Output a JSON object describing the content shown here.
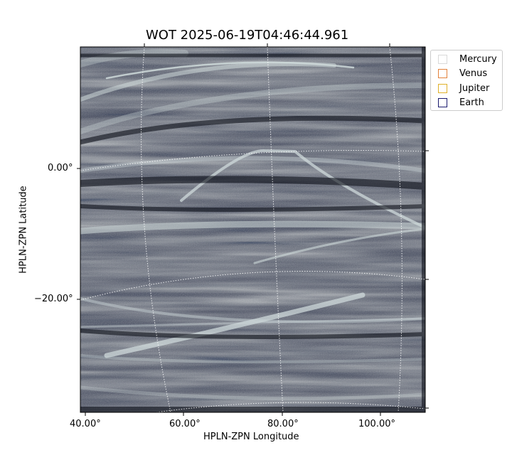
{
  "title": "WOT 2025-06-19T04:46:44.961",
  "axes": {
    "xlabel": "HPLN-ZPN Longitude",
    "ylabel": "HPLN-ZPN Latitude",
    "xticks": [
      "40.00°",
      "60.00°",
      "80.00°",
      "100.00°"
    ],
    "yticks": [
      "0.00°",
      "−20.00°"
    ]
  },
  "legend": {
    "items": [
      {
        "label": "Mercury",
        "color": "#d9d9d9"
      },
      {
        "label": "Venus",
        "color": "#e3813b"
      },
      {
        "label": "Jupiter",
        "color": "#e0b12a"
      },
      {
        "label": "Earth",
        "color": "#1a1a6e"
      }
    ]
  },
  "colors": {
    "image_dark": "#2f3446",
    "image_light": "#c7d4d6",
    "grid": "#ffffff"
  }
}
